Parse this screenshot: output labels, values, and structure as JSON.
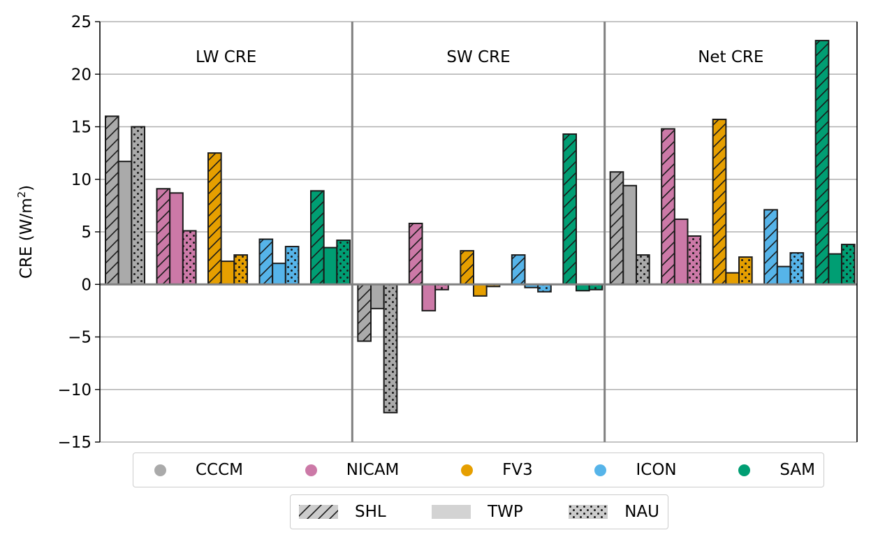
{
  "chart_data": {
    "type": "bar",
    "ylabel": "CRE (W/m²)",
    "ylim": [
      -15,
      25
    ],
    "yticks": [
      -15,
      -10,
      -5,
      0,
      5,
      10,
      15,
      20,
      25
    ],
    "ytick_labels": [
      "−15",
      "−10",
      "−5",
      "0",
      "5",
      "10",
      "15",
      "20",
      "25"
    ],
    "grid": true,
    "panels": [
      "LW CRE",
      "SW CRE",
      "Net CRE"
    ],
    "models": [
      {
        "name": "CCCM",
        "color": "#aaaaaa"
      },
      {
        "name": "NICAM",
        "color": "#cc79a7"
      },
      {
        "name": "FV3",
        "color": "#e69f00"
      },
      {
        "name": "ICON",
        "color": "#56b4e9"
      },
      {
        "name": "SAM",
        "color": "#009e73"
      }
    ],
    "regions": [
      {
        "name": "SHL",
        "pattern": "hatch"
      },
      {
        "name": "TWP",
        "pattern": "solid"
      },
      {
        "name": "NAU",
        "pattern": "dots"
      }
    ],
    "values": {
      "LW CRE": {
        "CCCM": [
          16.0,
          11.7,
          15.0
        ],
        "NICAM": [
          9.1,
          8.7,
          5.1
        ],
        "FV3": [
          12.5,
          2.2,
          2.8
        ],
        "ICON": [
          4.3,
          2.0,
          3.6
        ],
        "SAM": [
          8.9,
          3.5,
          4.2
        ]
      },
      "SW CRE": {
        "CCCM": [
          -5.4,
          -2.3,
          -12.2
        ],
        "NICAM": [
          5.8,
          -2.5,
          -0.5
        ],
        "FV3": [
          3.2,
          -1.1,
          -0.2
        ],
        "ICON": [
          2.8,
          -0.3,
          -0.7
        ],
        "SAM": [
          14.3,
          -0.6,
          -0.5
        ]
      },
      "Net CRE": {
        "CCCM": [
          10.7,
          9.4,
          2.8
        ],
        "NICAM": [
          14.8,
          6.2,
          4.6
        ],
        "FV3": [
          15.7,
          1.1,
          2.6
        ],
        "ICON": [
          7.1,
          1.7,
          3.0
        ],
        "SAM": [
          23.2,
          2.9,
          3.8
        ]
      }
    },
    "legend": {
      "placement": "bottom"
    }
  }
}
